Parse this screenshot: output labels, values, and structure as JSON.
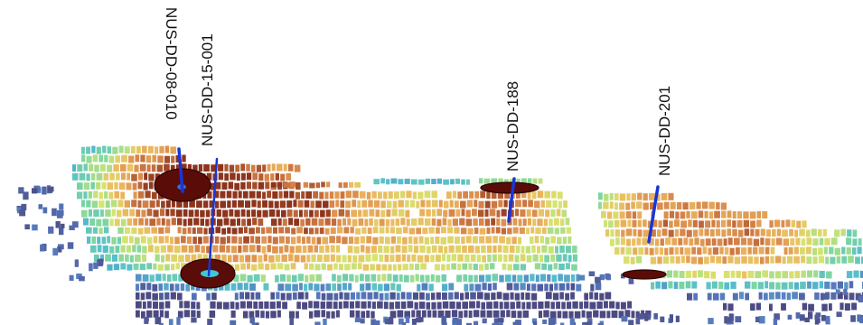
{
  "drill_holes": [
    {
      "name": "NUS-DD-08-010"
    },
    {
      "name": "NUS-DD-15-001"
    },
    {
      "name": "NUS-DD-188"
    },
    {
      "name": "NUS-DD-201"
    }
  ],
  "colors": {
    "trace": "#1a35d6",
    "disk": "#5a0c08",
    "disk_rim": "#2a0503",
    "low": "#4a4a8a",
    "high": "#8a2c14"
  }
}
